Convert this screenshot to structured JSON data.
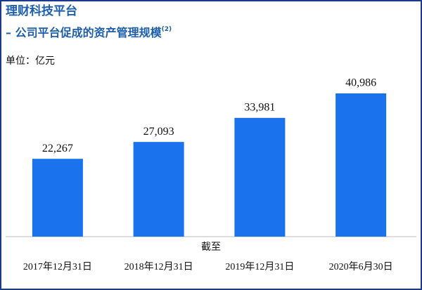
{
  "chart_data": {
    "type": "bar",
    "title": "理财科技平台",
    "subtitle": "– 公司平台促成的资产管理规模",
    "subtitle_note": "(2)",
    "unit_label": "单位：亿元",
    "x_label": "截至",
    "categories": [
      "2017年12月31日",
      "2018年12月31日",
      "2019年12月31日",
      "2020年6月30日"
    ],
    "values": [
      22267,
      27093,
      33981,
      40986
    ],
    "value_labels": [
      "22,267",
      "27,093",
      "33,981",
      "40,986"
    ],
    "color": "#1a73ec"
  }
}
